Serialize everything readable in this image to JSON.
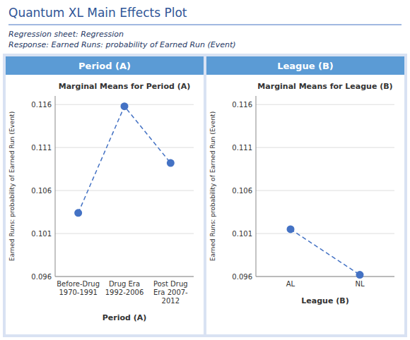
{
  "title": "Quantum XL Main Effects Plot",
  "subtitle": [
    "Regression sheet: Regression",
    "Response: Earned Runs: probability of Earned Run (Event)"
  ],
  "chart_data": [
    {
      "type": "line",
      "header": "Period (A)",
      "title": "Marginal  Means for Period (A)",
      "categories": [
        "Before-Drug\n1970-1991",
        "Drug Era\n1992-2006",
        "Post Drug\nEra 2007-\n2012"
      ],
      "values": [
        0.1034,
        0.1158,
        0.1092
      ],
      "x_label": "Period (A)",
      "y_label": "Earned Runs: probability of Earned Run (Event)",
      "ylim": [
        0.096,
        0.117
      ],
      "yticks": [
        0.096,
        0.101,
        0.106,
        0.111,
        0.116
      ],
      "grid": true,
      "color": "#4472C4",
      "marker": "circle",
      "line_style": "dashed"
    },
    {
      "type": "line",
      "header": "League (B)",
      "title": "Marginal  Means for League (B)",
      "categories": [
        "AL",
        "NL"
      ],
      "values": [
        0.1015,
        0.0962
      ],
      "x_label": "League (B)",
      "y_label": "Earned Runs: probability of Earned Run (Event)",
      "ylim": [
        0.096,
        0.117
      ],
      "yticks": [
        0.096,
        0.101,
        0.106,
        0.111,
        0.116
      ],
      "grid": true,
      "color": "#4472C4",
      "marker": "circle",
      "line_style": "dashed"
    }
  ]
}
